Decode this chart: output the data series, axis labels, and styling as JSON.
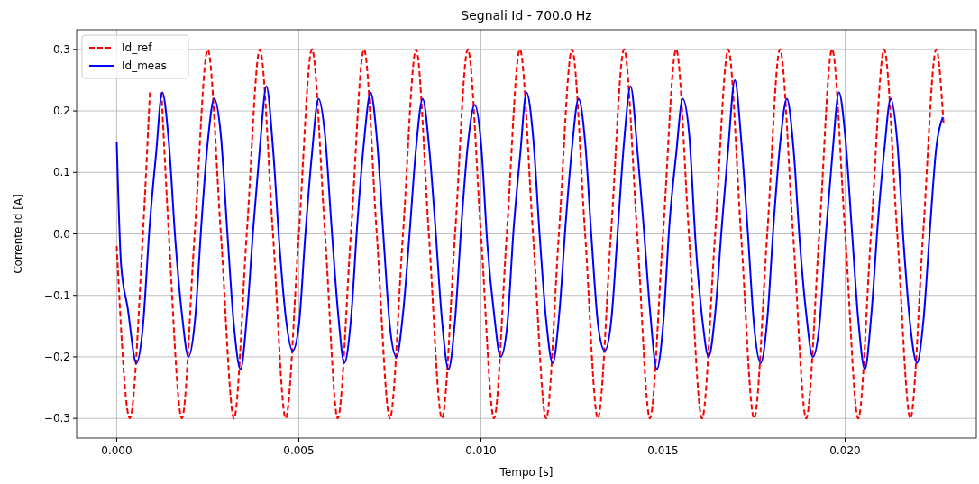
{
  "chart_data": {
    "type": "line",
    "title": "Segnali Id - 700.0 Hz",
    "xlabel": "Tempo [s]",
    "ylabel": "Corrente Id [A]",
    "xlim": [
      -0.0011,
      0.0236
    ],
    "ylim": [
      -0.332,
      0.332
    ],
    "xticks": [
      {
        "value": 0,
        "label": "0.000"
      },
      {
        "value": 0.005,
        "label": "0.005"
      },
      {
        "value": 0.01,
        "label": "0.010"
      },
      {
        "value": 0.015,
        "label": "0.015"
      },
      {
        "value": 0.02,
        "label": "0.020"
      }
    ],
    "yticks": [
      {
        "value": -0.3,
        "label": "−0.3"
      },
      {
        "value": -0.2,
        "label": "−0.2"
      },
      {
        "value": -0.1,
        "label": "−0.1"
      },
      {
        "value": 0,
        "label": "0.0"
      },
      0.1,
      0.2,
      0.3
    ],
    "grid": true,
    "legend": "top left",
    "series": [
      {
        "name": "Id_ref",
        "color": "#ff0000",
        "line_style": "dashed",
        "x": [
          0,
          0.00036,
          0.00072,
          0.00091,
          0.00107,
          0.00123,
          0.00143,
          0.00179,
          0.00214,
          0.0025,
          0.00286,
          0.00322,
          0.00357,
          0.00393,
          0.00429,
          0.00464,
          0.005,
          0.00536,
          0.00572,
          0.00607,
          0.00643,
          0.00679,
          0.00714,
          0.0075,
          0.00786,
          0.00822,
          0.00857,
          0.00893,
          0.00929,
          0.00964,
          0.01,
          0.01036,
          0.01071,
          0.01107,
          0.01143,
          0.01179,
          0.01214,
          0.0125,
          0.01286,
          0.01321,
          0.01357,
          0.01393,
          0.01429,
          0.01464,
          0.015,
          0.01536,
          0.01571,
          0.01607,
          0.01643,
          0.01679,
          0.01714,
          0.0175,
          0.01786,
          0.01821,
          0.01857,
          0.01893,
          0.01929,
          0.01964,
          0.02,
          0.02036,
          0.02071,
          0.02107,
          0.02143,
          0.02179,
          0.02214,
          0.0225,
          0.0227
        ],
        "values": [
          -0.02,
          -0.3,
          0,
          0.23,
          null,
          0.23,
          0,
          -0.3,
          0,
          0.3,
          0,
          -0.3,
          0,
          0.3,
          0,
          -0.3,
          0,
          0.3,
          0,
          -0.3,
          0,
          0.3,
          0,
          -0.3,
          0,
          0.3,
          0,
          -0.3,
          0,
          0.3,
          0,
          -0.3,
          0,
          0.3,
          0,
          -0.3,
          0,
          0.3,
          0,
          -0.3,
          0,
          0.3,
          0,
          -0.3,
          0,
          0.3,
          0,
          -0.3,
          0,
          0.3,
          0,
          -0.3,
          0,
          0.3,
          0,
          -0.3,
          0,
          0.3,
          0,
          -0.3,
          0,
          0.3,
          0,
          -0.3,
          0,
          0.3,
          0.18
        ]
      },
      {
        "name": "Id_meas",
        "color": "#0000ff",
        "line_style": "solid",
        "x": [
          0,
          0.00012,
          0.0003,
          0.00054,
          0.00072,
          0.0009,
          0.00108,
          0.00125,
          0.00143,
          0.00161,
          0.00179,
          0.00197,
          0.00215,
          0.00233,
          0.0025,
          0.00268,
          0.00286,
          0.00304,
          0.00322,
          0.0034,
          0.00358,
          0.00375,
          0.00393,
          0.00411,
          0.00429,
          0.00447,
          0.00465,
          0.00483,
          0.005,
          0.00518,
          0.00536,
          0.00554,
          0.00572,
          0.0059,
          0.00608,
          0.00625,
          0.00643,
          0.00661,
          0.00679,
          0.00697,
          0.00715,
          0.00733,
          0.0075,
          0.00768,
          0.00786,
          0.00804,
          0.00822,
          0.0084,
          0.00858,
          0.00875,
          0.00893,
          0.00911,
          0.00929,
          0.00947,
          0.00965,
          0.00983,
          0.01,
          0.01018,
          0.01036,
          0.01054,
          0.01072,
          0.0109,
          0.01108,
          0.01125,
          0.01143,
          0.01161,
          0.01179,
          0.01197,
          0.01215,
          0.01233,
          0.0125,
          0.01268,
          0.01286,
          0.01304,
          0.01322,
          0.0134,
          0.01358,
          0.01375,
          0.01393,
          0.01411,
          0.01429,
          0.01447,
          0.01465,
          0.01483,
          0.015,
          0.01518,
          0.01536,
          0.01554,
          0.01572,
          0.0159,
          0.01608,
          0.01625,
          0.01643,
          0.01661,
          0.01679,
          0.01697,
          0.01715,
          0.01733,
          0.0175,
          0.01768,
          0.01786,
          0.01804,
          0.01822,
          0.0184,
          0.01858,
          0.01875,
          0.01893,
          0.01911,
          0.01929,
          0.01947,
          0.01965,
          0.01983,
          0.02,
          0.02018,
          0.02036,
          0.02054,
          0.02072,
          0.0209,
          0.02108,
          0.02125,
          0.02143,
          0.02161,
          0.02179,
          0.02197,
          0.02215,
          0.02233,
          0.0225,
          0.02268
        ],
        "values": [
          0.15,
          -0.05,
          -0.12,
          -0.21,
          -0.15,
          0.01,
          0.13,
          0.23,
          0.15,
          -0.01,
          -0.13,
          -0.2,
          -0.14,
          0.02,
          0.15,
          0.22,
          0.16,
          0,
          -0.15,
          -0.22,
          -0.13,
          0.01,
          0.14,
          0.24,
          0.14,
          -0.02,
          -0.14,
          -0.19,
          -0.15,
          0,
          0.13,
          0.22,
          0.16,
          0.01,
          -0.13,
          -0.21,
          -0.14,
          0.02,
          0.15,
          0.23,
          0.15,
          -0.01,
          -0.15,
          -0.2,
          -0.13,
          0,
          0.14,
          0.22,
          0.14,
          0.01,
          -0.14,
          -0.22,
          -0.14,
          0.02,
          0.15,
          0.21,
          0.15,
          -0.02,
          -0.13,
          -0.2,
          -0.15,
          0.01,
          0.13,
          0.23,
          0.16,
          0,
          -0.14,
          -0.21,
          -0.13,
          0.02,
          0.14,
          0.22,
          0.15,
          -0.01,
          -0.15,
          -0.19,
          -0.14,
          0,
          0.15,
          0.24,
          0.14,
          0.01,
          -0.13,
          -0.22,
          -0.15,
          0.02,
          0.13,
          0.22,
          0.16,
          -0.02,
          -0.14,
          -0.2,
          -0.13,
          0.01,
          0.14,
          0.25,
          0.15,
          0,
          -0.15,
          -0.21,
          -0.14,
          0.02,
          0.15,
          0.22,
          0.14,
          -0.01,
          -0.13,
          -0.2,
          -0.15,
          0,
          0.13,
          0.23,
          0.16,
          0.01,
          -0.14,
          -0.22,
          -0.13,
          0.02,
          0.14,
          0.22,
          0.15,
          -0.02,
          -0.15,
          -0.21,
          -0.14,
          0.01,
          0.14,
          0.19
        ]
      }
    ]
  }
}
